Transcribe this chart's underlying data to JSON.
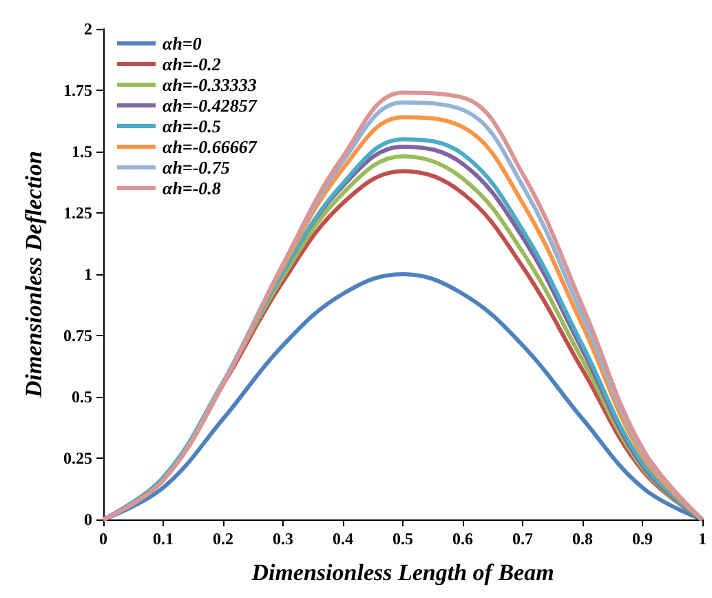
{
  "chart_data": {
    "type": "line",
    "xlabel": "Dimensionless Length of Beam",
    "ylabel": "Dimensionless Deflection",
    "x": [
      0,
      0.1,
      0.2,
      0.3,
      0.4,
      0.5,
      0.6,
      0.7,
      0.8,
      0.9,
      1
    ],
    "series": [
      {
        "name": "αh=0",
        "color": "#4f81bd",
        "values": [
          0,
          0.13,
          0.41,
          0.71,
          0.92,
          1,
          0.92,
          0.71,
          0.41,
          0.13,
          0
        ]
      },
      {
        "name": "αh=-0.2",
        "color": "#c0504d",
        "values": [
          0,
          0.17,
          0.55,
          0.97,
          1.29,
          1.42,
          1.33,
          1.03,
          0.61,
          0.2,
          0
        ]
      },
      {
        "name": "αh=-0.33333",
        "color": "#9bbb59",
        "values": [
          0,
          0.17,
          0.56,
          0.99,
          1.33,
          1.48,
          1.39,
          1.09,
          0.65,
          0.21,
          0
        ]
      },
      {
        "name": "αh=-0.42857",
        "color": "#8064a2",
        "values": [
          0,
          0.17,
          0.56,
          1.01,
          1.36,
          1.52,
          1.45,
          1.15,
          0.69,
          0.22,
          0
        ]
      },
      {
        "name": "αh=-0.5",
        "color": "#4bacc6",
        "values": [
          0,
          0.17,
          0.56,
          1.01,
          1.37,
          1.55,
          1.49,
          1.18,
          0.71,
          0.23,
          0
        ]
      },
      {
        "name": "αh=-0.66667",
        "color": "#f79646",
        "values": [
          0,
          0.16,
          0.56,
          1.03,
          1.43,
          1.64,
          1.6,
          1.29,
          0.79,
          0.26,
          0
        ]
      },
      {
        "name": "αh=-0.75",
        "color": "#95b3d7",
        "values": [
          0,
          0.16,
          0.56,
          1.04,
          1.46,
          1.7,
          1.67,
          1.36,
          0.83,
          0.28,
          0
        ]
      },
      {
        "name": "αh=-0.8",
        "color": "#d99694",
        "values": [
          0,
          0.16,
          0.55,
          1.04,
          1.48,
          1.74,
          1.72,
          1.41,
          0.87,
          0.29,
          0
        ]
      }
    ],
    "xlim": [
      0,
      1
    ],
    "xticks": [
      0,
      0.1,
      0.2,
      0.3,
      0.4,
      0.5,
      0.6,
      0.7,
      0.8,
      0.9,
      1
    ],
    "ylim": [
      0,
      2
    ],
    "yticks": [
      0,
      0.25,
      0.5,
      0.75,
      1,
      1.25,
      1.5,
      1.75,
      2
    ],
    "legend": "top left",
    "grid": false,
    "marker": "none",
    "line_style": "solid"
  }
}
